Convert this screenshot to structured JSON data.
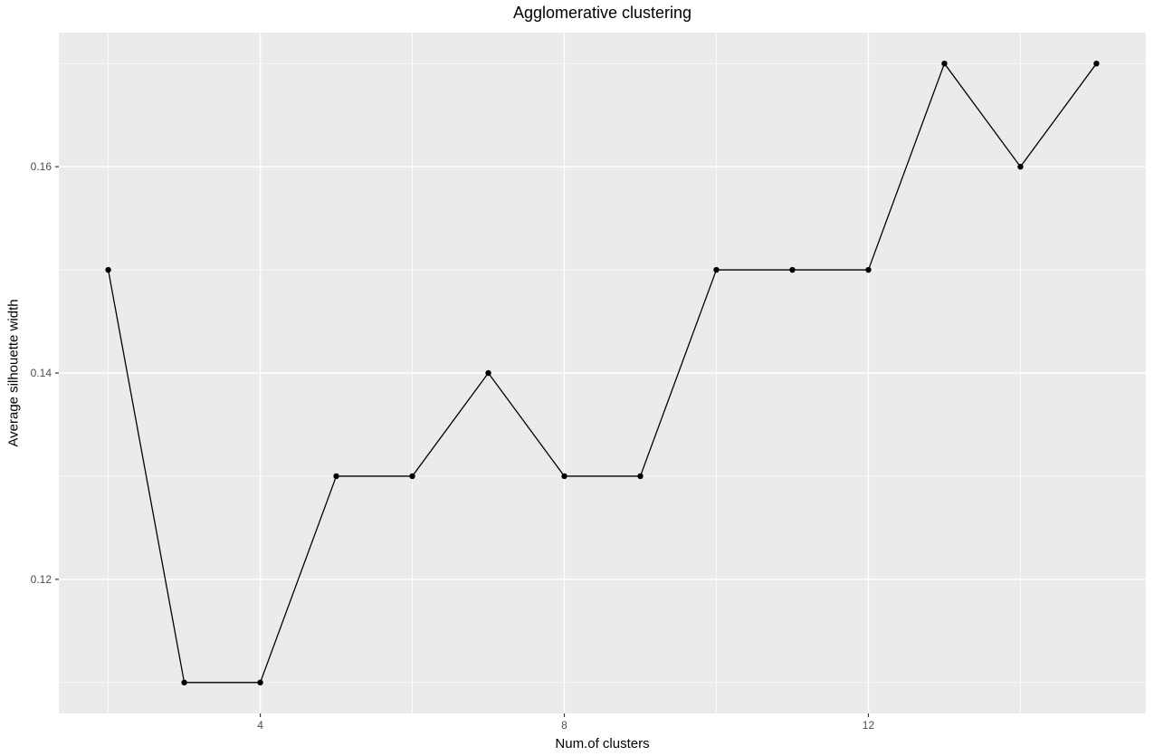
{
  "chart_data": {
    "type": "line",
    "title": "Agglomerative clustering",
    "xlabel": "Num.of clusters",
    "ylabel": "Average silhouette width",
    "x": [
      2,
      3,
      4,
      5,
      6,
      7,
      8,
      9,
      10,
      11,
      12,
      13,
      14,
      15
    ],
    "y": [
      0.15,
      0.11,
      0.11,
      0.13,
      0.13,
      0.14,
      0.13,
      0.13,
      0.15,
      0.15,
      0.15,
      0.17,
      0.16,
      0.17
    ],
    "xlim": [
      1.35,
      15.65
    ],
    "ylim": [
      0.107,
      0.173
    ],
    "x_major_ticks": {
      "values": [
        4,
        8,
        12
      ],
      "labels": [
        "4",
        "8",
        "12"
      ]
    },
    "x_minor_ticks": [
      2,
      6,
      10,
      14
    ],
    "y_major_ticks": {
      "values": [
        0.12,
        0.14,
        0.16
      ],
      "labels": [
        "0.12",
        "0.14",
        "0.16"
      ]
    },
    "y_minor_ticks": [
      0.11,
      0.13,
      0.15,
      0.17
    ],
    "grid": "major+minor white gridlines on grey panel",
    "legend": "none",
    "style": {
      "panel_bg": "#EBEBEB",
      "grid_color": "#FFFFFF",
      "line_color": "#000000",
      "point_color": "#000000",
      "tick_color": "#333333",
      "tick_label_color": "#4D4D4D",
      "title_color": "#000000"
    }
  }
}
